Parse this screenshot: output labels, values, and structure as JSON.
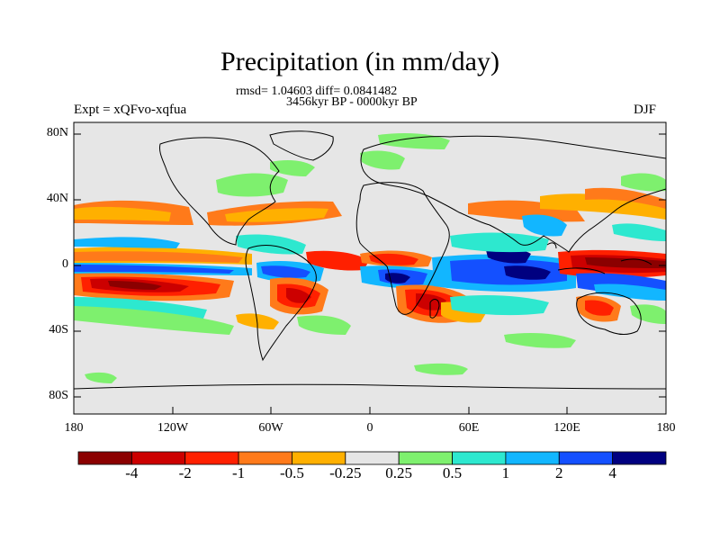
{
  "header": {
    "title": "Precipitation (in mm/day)",
    "stats": "rmsd= 1.04603 diff= 0.0841482",
    "period": "3456kyr BP - 0000kyr BP",
    "experiment": "Expt = xQFvo-xqfua",
    "season": "DJF"
  },
  "axes": {
    "lon_labels": [
      "180",
      "120W",
      "60W",
      "0",
      "60E",
      "120E",
      "180"
    ],
    "lat_labels": [
      "80N",
      "40N",
      "0",
      "40S",
      "80S"
    ]
  },
  "colorbar": {
    "colors": [
      "#8b0000",
      "#cc0000",
      "#ff2000",
      "#ff7a1a",
      "#ffb000",
      "#e6e6e6",
      "#7ef06e",
      "#2de8cf",
      "#12b6ff",
      "#1450ff",
      "#000080"
    ],
    "labels": [
      "-4",
      "-2",
      "-1",
      "-0.5",
      "-0.25",
      "0.25",
      "0.5",
      "1",
      "2",
      "4"
    ]
  },
  "colors": {
    "land_bg": "#e6e6e6",
    "coast": "#000000"
  }
}
